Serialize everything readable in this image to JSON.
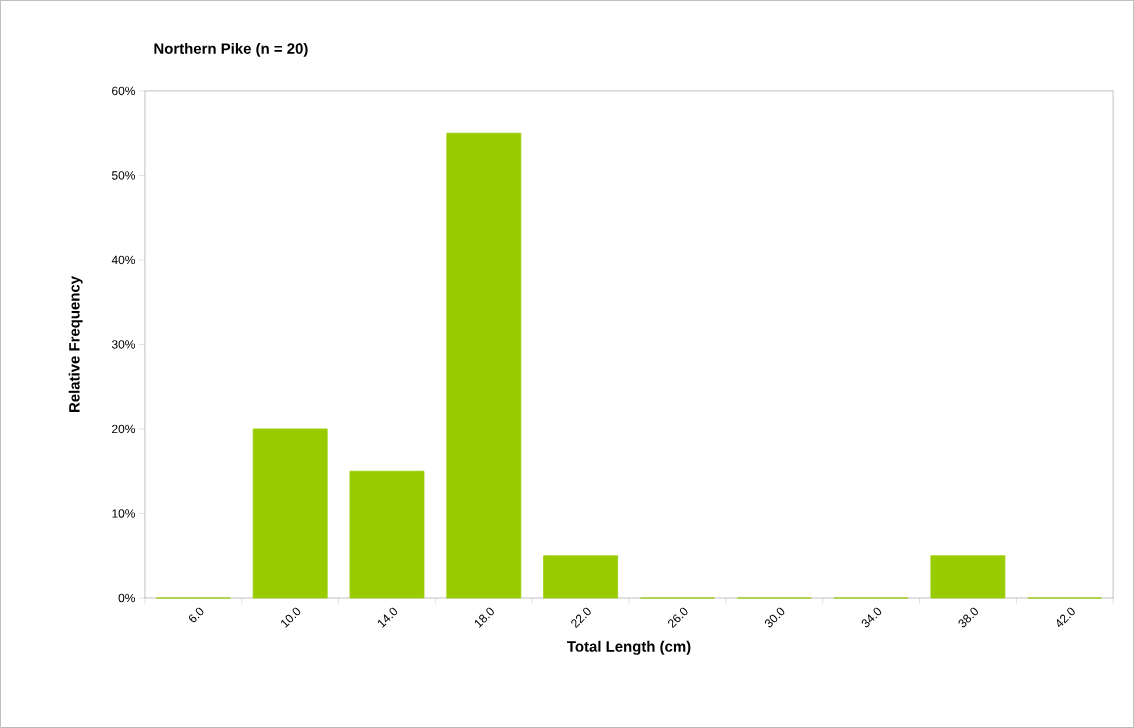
{
  "chart_data": {
    "type": "bar",
    "title": "Northern Pike (n = 20)",
    "xlabel": "Total Length (cm)",
    "ylabel": "Relative Frequency",
    "categories": [
      "6.0",
      "10.0",
      "14.0",
      "18.0",
      "22.0",
      "26.0",
      "30.0",
      "34.0",
      "38.0",
      "42.0"
    ],
    "values": [
      0,
      20,
      15,
      55,
      5,
      0,
      0,
      0,
      5,
      0
    ],
    "color": "#99cc00",
    "ylim": [
      0,
      60
    ],
    "yticks": [
      {
        "value": 0,
        "label": "0%"
      },
      {
        "value": 10,
        "label": "10%"
      },
      {
        "value": 20,
        "label": "20%"
      },
      {
        "value": 30,
        "label": "30%"
      },
      {
        "value": 40,
        "label": "40%"
      },
      {
        "value": 50,
        "label": "50%"
      },
      {
        "value": 60,
        "label": "60%"
      }
    ],
    "grid": false
  }
}
